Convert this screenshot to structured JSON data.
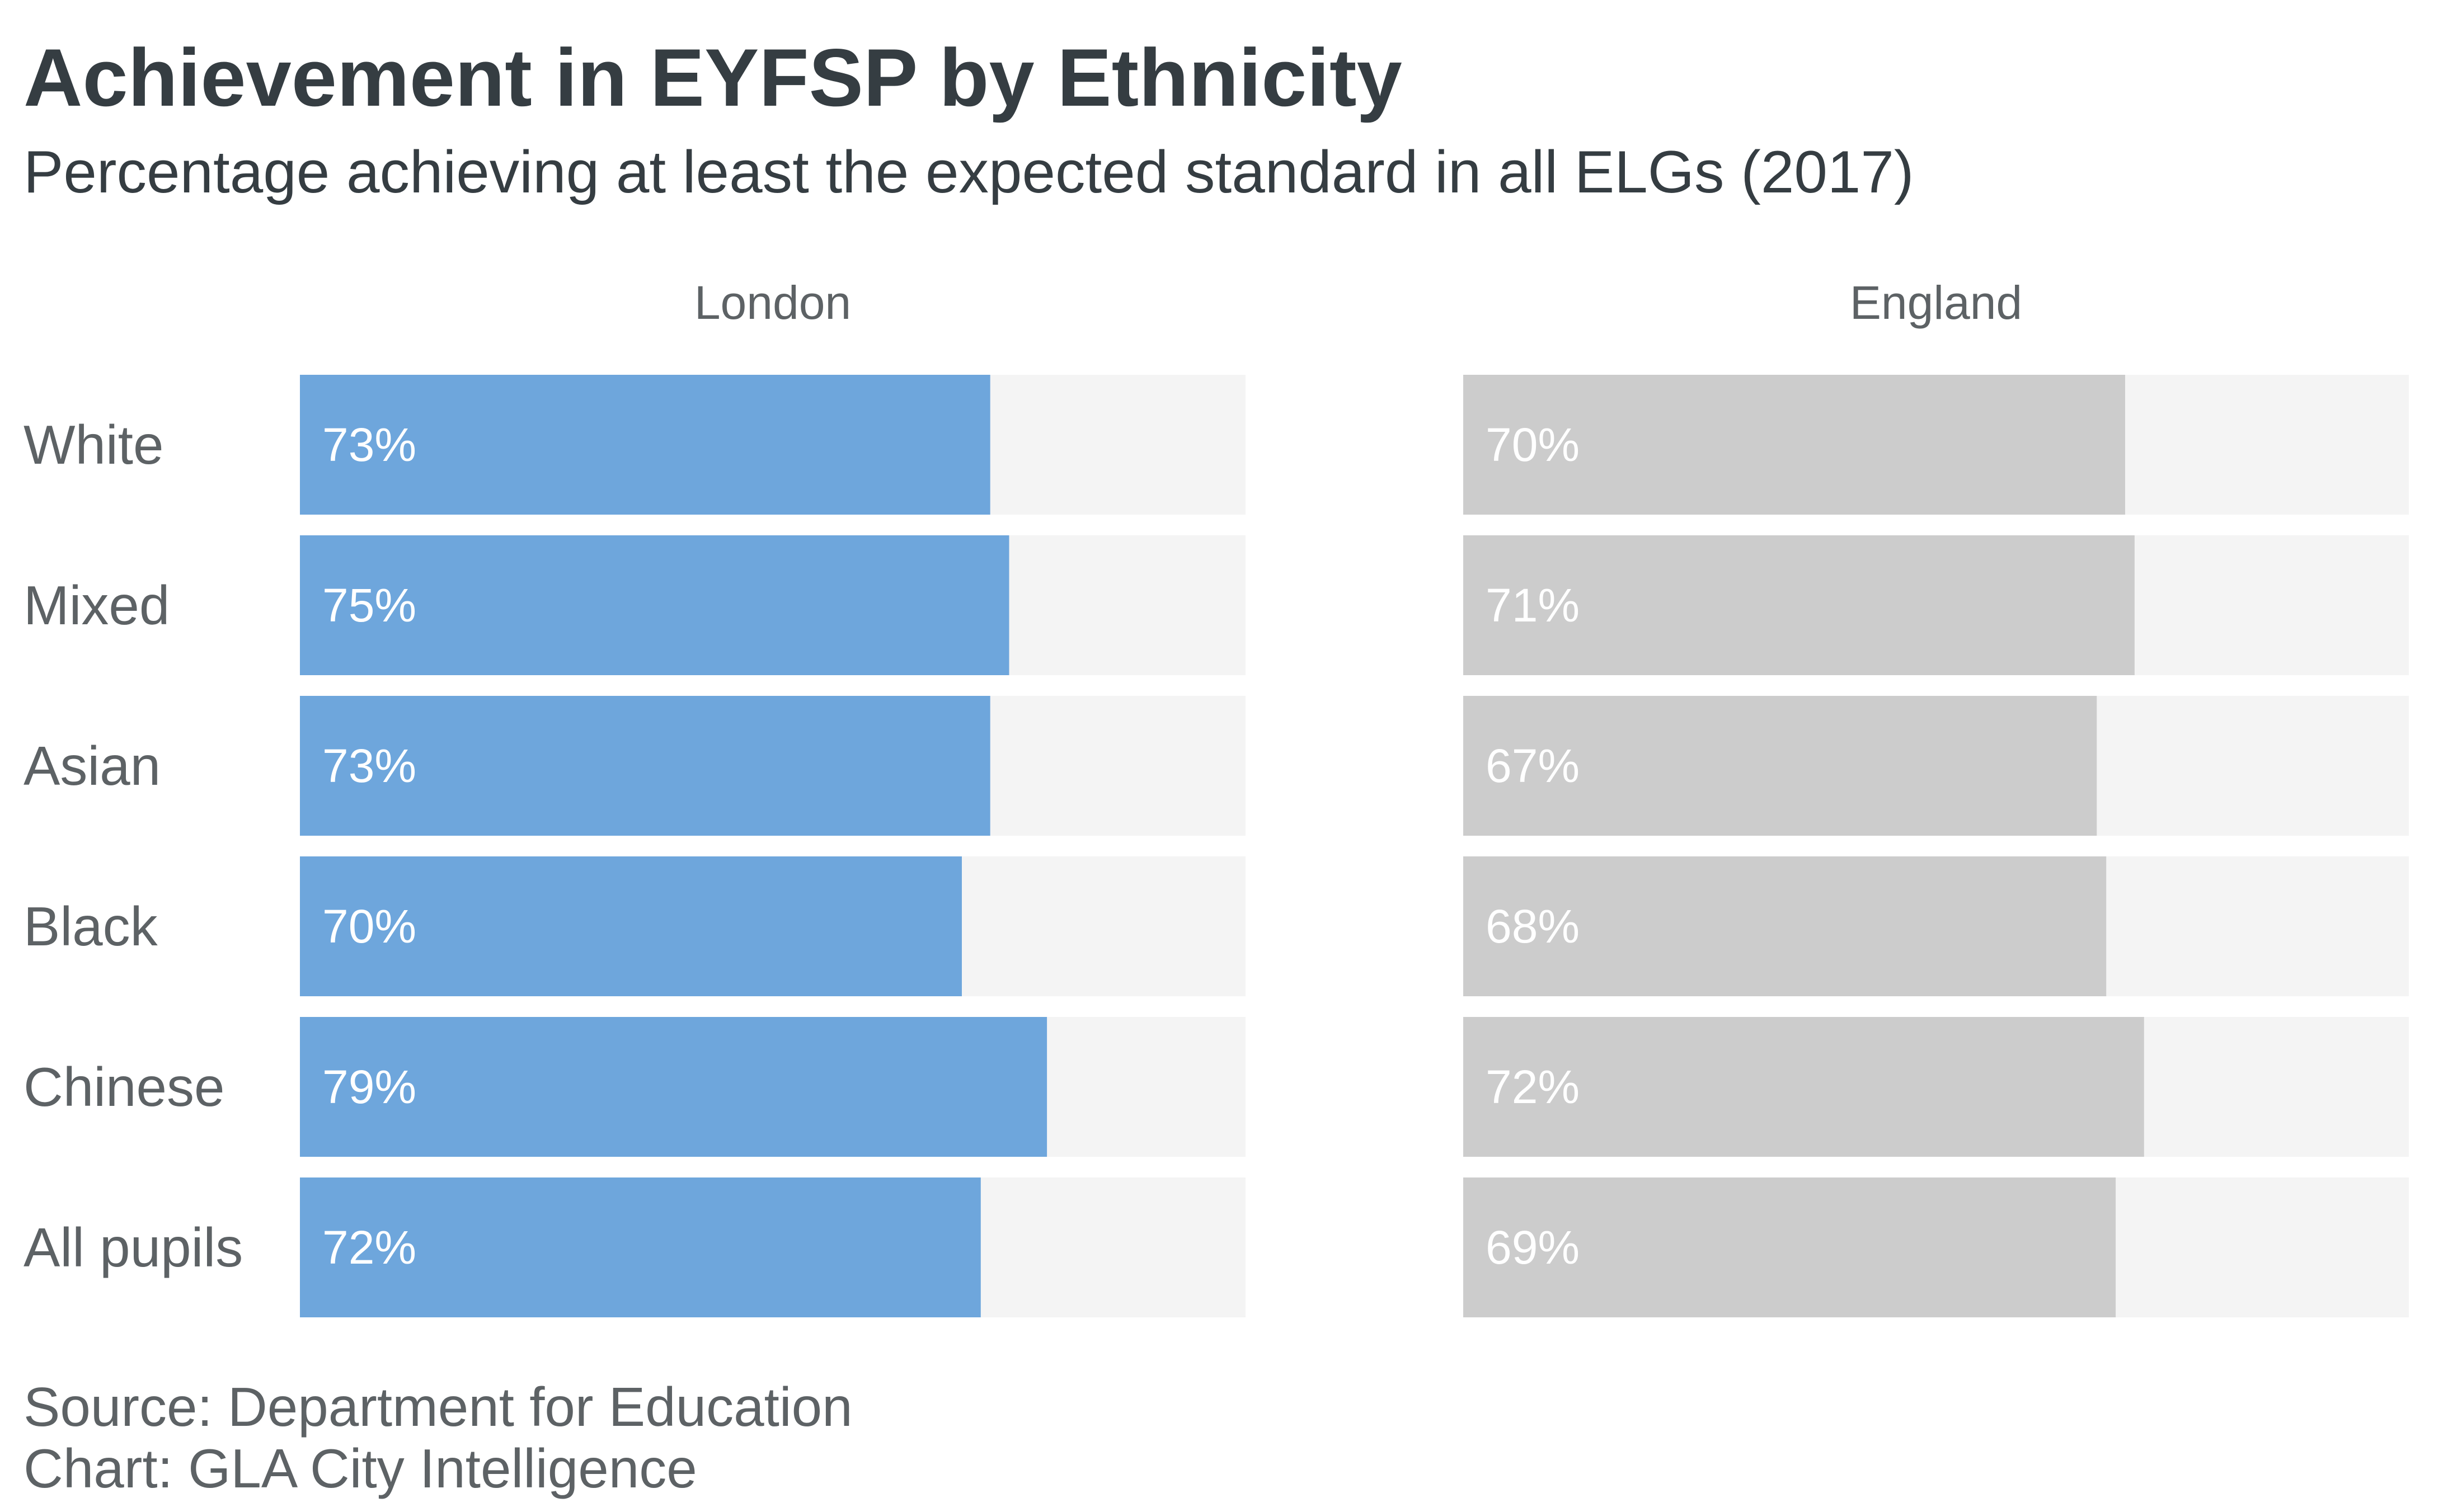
{
  "chart_data": {
    "type": "bar",
    "orientation": "horizontal",
    "title": "Achievement in EYFSP by Ethnicity",
    "subtitle": "Percentage achieving at least the expected standard in all ELGs (2017)",
    "categories": [
      "White",
      "Mixed",
      "Asian",
      "Black",
      "Chinese",
      "All pupils"
    ],
    "xlim": [
      0,
      100
    ],
    "value_suffix": "%",
    "grid": false,
    "panels": [
      {
        "name": "London",
        "color": "#6ea6dc",
        "values": [
          73,
          75,
          73,
          70,
          79,
          72
        ],
        "labels": [
          "73%",
          "75%",
          "73%",
          "70%",
          "79%",
          "72%"
        ]
      },
      {
        "name": "England",
        "color": "#cccccc",
        "values": [
          70,
          71,
          67,
          68,
          72,
          69
        ],
        "labels": [
          "70%",
          "71%",
          "67%",
          "68%",
          "72%",
          "69%"
        ]
      }
    ],
    "track_color": "#f4f4f4"
  },
  "source_lines": [
    "Source: Department for Education",
    "Chart: GLA City Intelligence"
  ]
}
